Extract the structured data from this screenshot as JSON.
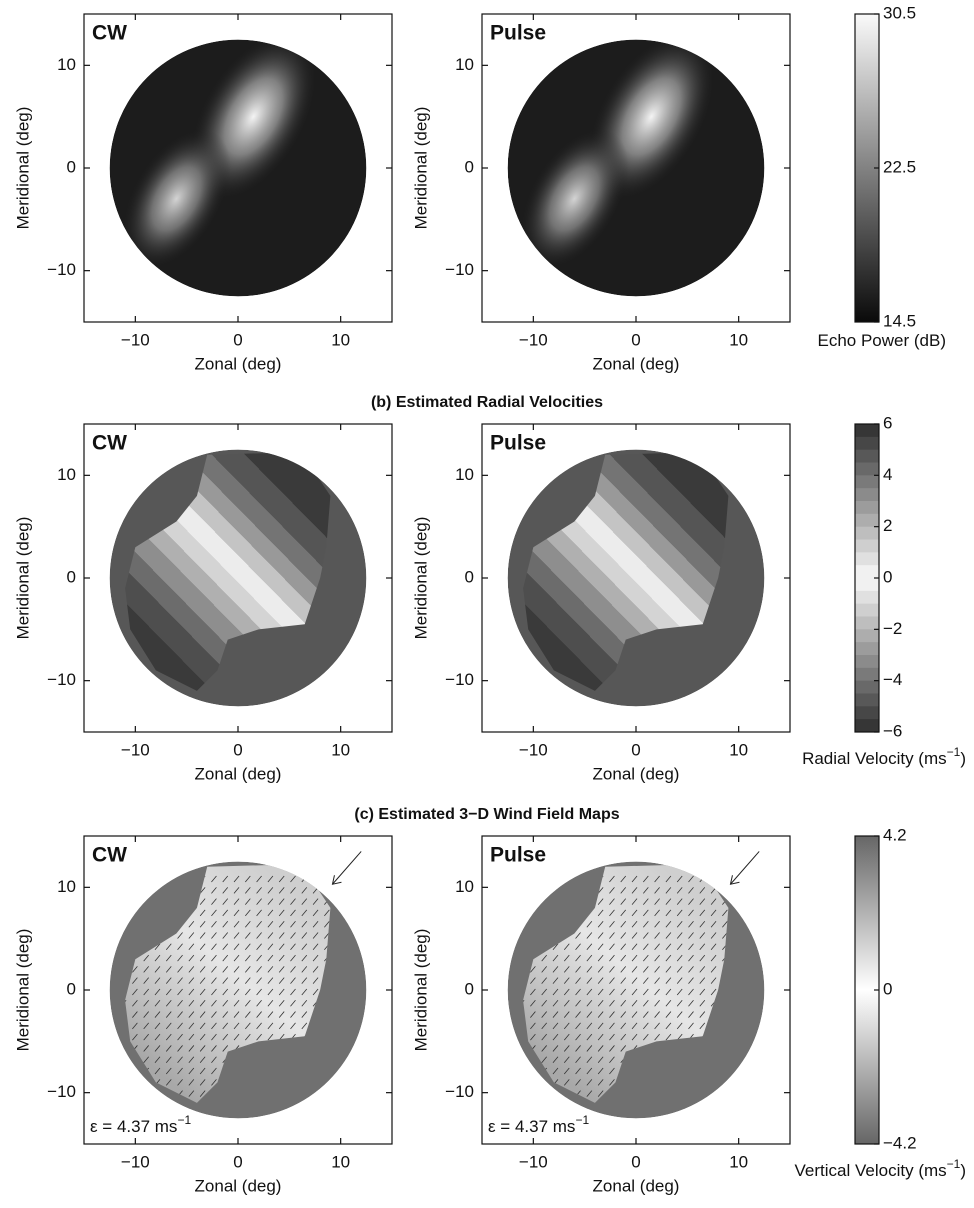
{
  "chart_data": {
    "type": "figure",
    "rows": [
      {
        "panels": [
          {
            "type": "image",
            "title": "CW",
            "xlabel": "Zonal (deg)",
            "ylabel": "Meridional (deg)",
            "xlim": [
              -15,
              15
            ],
            "ylim": [
              -15,
              15
            ],
            "xticks": [
              {
                "value": -10,
                "label": "−10"
              },
              0,
              10
            ],
            "yticks": [
              {
                "value": -10,
                "label": "−10"
              },
              0,
              10
            ]
          },
          {
            "type": "image",
            "title": "Pulse",
            "xlabel": "Zonal (deg)",
            "ylabel": "Meridional (deg)",
            "xlim": [
              -15,
              15
            ],
            "ylim": [
              -15,
              15
            ],
            "xticks": [
              {
                "value": -10,
                "label": "−10"
              },
              0,
              10
            ],
            "yticks": [
              {
                "value": -10,
                "label": "−10"
              },
              0,
              10
            ]
          }
        ],
        "colorbar": {
          "label": "Echo Power (dB)",
          "clim": [
            14.5,
            30.5
          ],
          "ticks": [
            14.5,
            22.5,
            30.5
          ]
        }
      },
      {
        "title": "(b)  Estimated Radial Velocities",
        "panels": [
          {
            "type": "image",
            "title": "CW",
            "xlabel": "Zonal (deg)",
            "ylabel": "Meridional (deg)",
            "xlim": [
              -15,
              15
            ],
            "ylim": [
              -15,
              15
            ],
            "xticks": [
              {
                "value": -10,
                "label": "−10"
              },
              0,
              10
            ],
            "yticks": [
              {
                "value": -10,
                "label": "−10"
              },
              0,
              10
            ]
          },
          {
            "type": "image",
            "title": "Pulse",
            "xlabel": "Zonal (deg)",
            "ylabel": "Meridional (deg)",
            "xlim": [
              -15,
              15
            ],
            "ylim": [
              -15,
              15
            ],
            "xticks": [
              {
                "value": -10,
                "label": "−10"
              },
              0,
              10
            ],
            "yticks": [
              {
                "value": -10,
                "label": "−10"
              },
              0,
              10
            ]
          }
        ],
        "colorbar": {
          "label": "Radial Velocity (ms",
          "label_sup": "−1",
          "label_end": ")",
          "clim": [
            -6,
            6
          ],
          "ticks": [
            {
              "value": -6,
              "label": "−6"
            },
            {
              "value": -4,
              "label": "−4"
            },
            {
              "value": -2,
              "label": "−2"
            },
            0,
            2,
            4,
            6
          ]
        }
      },
      {
        "title": "(c)  Estimated 3−D Wind Field Maps",
        "panels": [
          {
            "type": "image",
            "title": "CW",
            "xlabel": "Zonal (deg)",
            "ylabel": "Meridional (deg)",
            "xlim": [
              -15,
              15
            ],
            "ylim": [
              -15,
              15
            ],
            "xticks": [
              {
                "value": -10,
                "label": "−10"
              },
              0,
              10
            ],
            "yticks": [
              {
                "value": -10,
                "label": "−10"
              },
              0,
              10
            ],
            "annotation": "ε = 4.37 ms",
            "annotation_sup": "−1"
          },
          {
            "type": "image",
            "title": "Pulse",
            "xlabel": "Zonal (deg)",
            "ylabel": "Meridional (deg)",
            "xlim": [
              -15,
              15
            ],
            "ylim": [
              -15,
              15
            ],
            "xticks": [
              {
                "value": -10,
                "label": "−10"
              },
              0,
              10
            ],
            "yticks": [
              {
                "value": -10,
                "label": "−10"
              },
              0,
              10
            ],
            "annotation": "ε = 4.37 ms",
            "annotation_sup": "−1"
          }
        ],
        "colorbar": {
          "label": "Vertical Velocity (ms",
          "label_sup": "−1",
          "label_end": ")",
          "clim": [
            -4.2,
            4.2
          ],
          "ticks": [
            {
              "value": -4.2,
              "label": "−4.2"
            },
            0,
            4.2
          ]
        }
      }
    ]
  }
}
